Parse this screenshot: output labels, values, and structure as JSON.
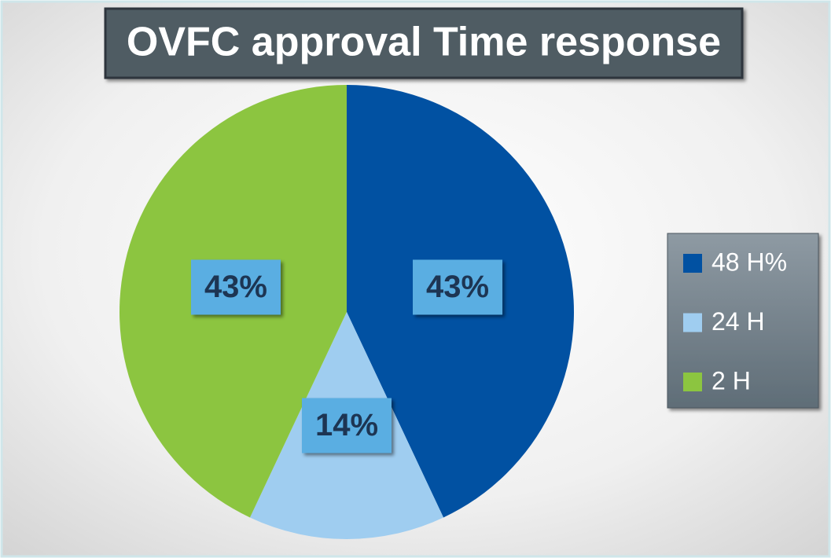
{
  "chart_data": {
    "type": "pie",
    "title": "OVFC approval Time response",
    "categories": [
      "48 H%",
      "24 H",
      "2 H"
    ],
    "values": [
      43,
      14,
      43
    ],
    "value_labels": [
      "43%",
      "14%",
      "43%"
    ],
    "colors": [
      "#0151a2",
      "#9fcdf0",
      "#8cc540"
    ],
    "legend": "right"
  }
}
